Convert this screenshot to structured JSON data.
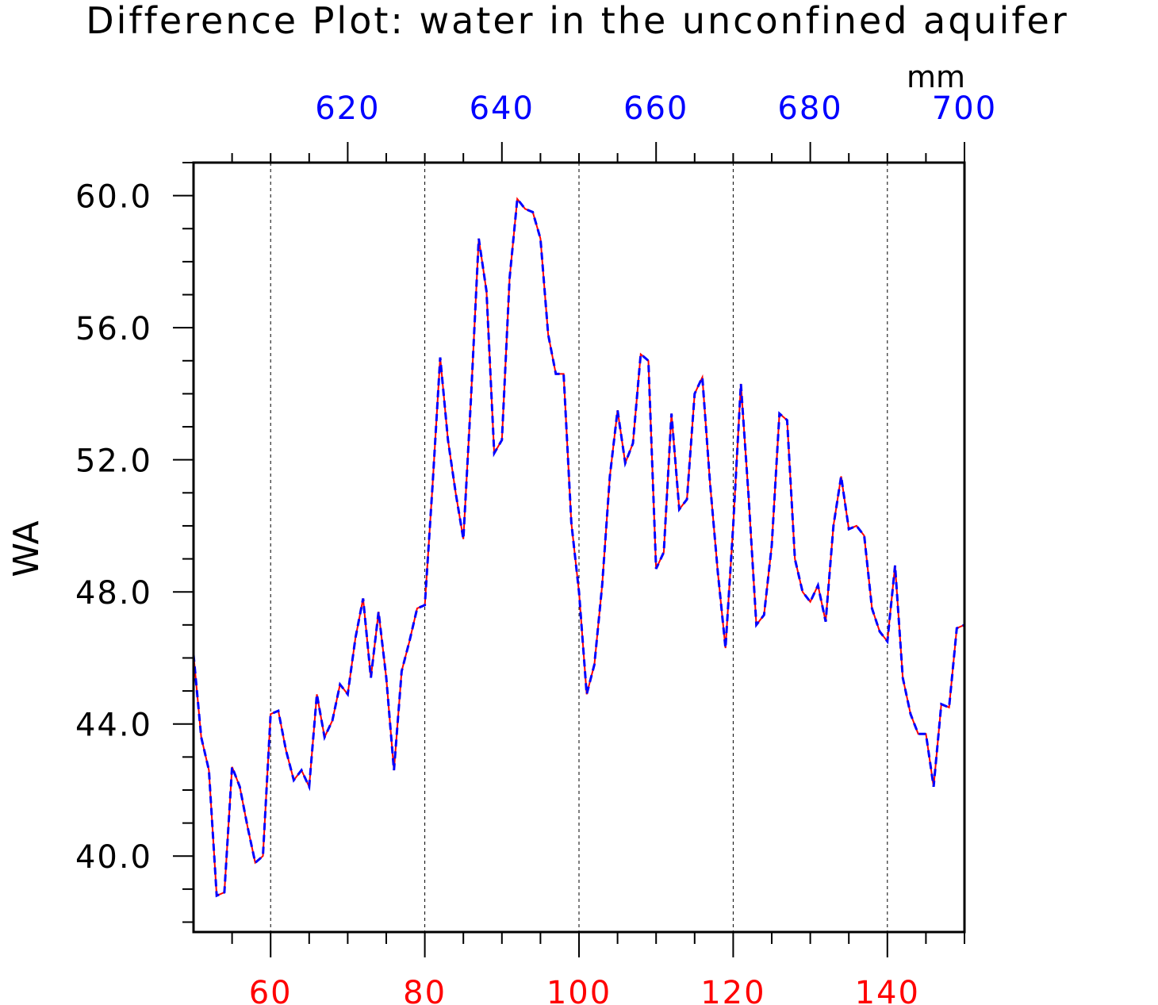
{
  "chart_data": {
    "type": "line",
    "title": "Difference Plot: water in the unconfined aquifer",
    "ylabel": "WA",
    "units_label": "mm",
    "x_bottom": {
      "range": [
        50,
        150
      ],
      "ticks": [
        60,
        80,
        100,
        120,
        140
      ],
      "tick_labels": [
        "60",
        "80",
        "100",
        "120",
        "140"
      ],
      "color": "#ff0000"
    },
    "x_top": {
      "range": [
        600,
        700
      ],
      "ticks": [
        620,
        640,
        660,
        680,
        700
      ],
      "tick_labels": [
        "620",
        "640",
        "660",
        "680",
        "700"
      ],
      "color": "#0000ff"
    },
    "y_axis": {
      "range": [
        37.7,
        61.0
      ],
      "ticks": [
        40,
        44,
        48,
        52,
        56,
        60
      ],
      "tick_labels": [
        "40.0",
        "44.0",
        "48.0",
        "52.0",
        "56.0",
        "60.0"
      ]
    },
    "grid": "vertical dashed at bottom-axis major ticks",
    "series": [
      {
        "color": "#ff0000",
        "style": "solid",
        "x": [
          50,
          51,
          52,
          53,
          54,
          55,
          56,
          57,
          58,
          59,
          60,
          61,
          62,
          63,
          64,
          65,
          66,
          67,
          68,
          69,
          70,
          71,
          72,
          73,
          74,
          75,
          76,
          77,
          78,
          79,
          80,
          81,
          82,
          83,
          84,
          85,
          86,
          87,
          88,
          89,
          90,
          91,
          92,
          93,
          94,
          95,
          96,
          97,
          98,
          99,
          100,
          101,
          102,
          103,
          104,
          105,
          106,
          107,
          108,
          109,
          110,
          111,
          112,
          113,
          114,
          115,
          116,
          117,
          118,
          119,
          120,
          121,
          122,
          123,
          124,
          125,
          126,
          127,
          128,
          129,
          130,
          131,
          132,
          133,
          134,
          135,
          136,
          137,
          138,
          139,
          140,
          141,
          142,
          143,
          144,
          145,
          146,
          147,
          148,
          149,
          150
        ],
        "values": [
          46.1,
          43.6,
          42.6,
          38.8,
          38.9,
          42.7,
          42.1,
          40.9,
          39.8,
          40.0,
          44.3,
          44.4,
          43.2,
          42.3,
          42.6,
          42.1,
          44.9,
          43.6,
          44.1,
          45.2,
          44.9,
          46.6,
          47.8,
          45.4,
          47.4,
          45.4,
          42.6,
          45.6,
          46.5,
          47.5,
          47.6,
          51.2,
          55.1,
          52.6,
          51.0,
          49.6,
          53.9,
          58.7,
          57.1,
          52.2,
          52.6,
          57.5,
          59.9,
          59.6,
          59.5,
          58.7,
          55.8,
          54.6,
          54.6,
          50.1,
          48.0,
          44.9,
          45.8,
          48.2,
          51.5,
          53.5,
          51.9,
          52.5,
          55.2,
          55.0,
          48.7,
          49.2,
          53.4,
          50.5,
          50.8,
          54.0,
          54.5,
          51.3,
          48.6,
          46.3,
          50.0,
          54.3,
          50.9,
          47.0,
          47.3,
          49.4,
          53.4,
          53.2,
          49.0,
          48.0,
          47.7,
          48.2,
          47.1,
          50.0,
          51.5,
          49.9,
          50.0,
          49.7,
          47.5,
          46.8,
          46.5,
          48.8,
          45.4,
          44.3,
          43.7,
          43.7,
          42.1,
          44.6,
          44.5,
          46.9,
          47.0
        ]
      },
      {
        "color": "#0000ff",
        "style": "dashed",
        "x": [
          600,
          601,
          602,
          603,
          604,
          605,
          606,
          607,
          608,
          609,
          610,
          611,
          612,
          613,
          614,
          615,
          616,
          617,
          618,
          619,
          620,
          621,
          622,
          623,
          624,
          625,
          626,
          627,
          628,
          629,
          630,
          631,
          632,
          633,
          634,
          635,
          636,
          637,
          638,
          639,
          640,
          641,
          642,
          643,
          644,
          645,
          646,
          647,
          648,
          649,
          650,
          651,
          652,
          653,
          654,
          655,
          656,
          657,
          658,
          659,
          660,
          661,
          662,
          663,
          664,
          665,
          666,
          667,
          668,
          669,
          670,
          671,
          672,
          673,
          674,
          675,
          676,
          677,
          678,
          679,
          680,
          681,
          682,
          683,
          684,
          685,
          686,
          687,
          688,
          689,
          690,
          691,
          692,
          693,
          694,
          695,
          696,
          697,
          698,
          699,
          700
        ],
        "values": [
          46.1,
          43.6,
          42.6,
          38.8,
          38.9,
          42.7,
          42.1,
          40.9,
          39.8,
          40.0,
          44.3,
          44.4,
          43.2,
          42.3,
          42.6,
          42.1,
          44.9,
          43.6,
          44.1,
          45.2,
          44.9,
          46.6,
          47.8,
          45.4,
          47.4,
          45.4,
          42.6,
          45.6,
          46.5,
          47.5,
          47.6,
          51.2,
          55.1,
          52.6,
          51.0,
          49.6,
          53.9,
          58.7,
          57.1,
          52.2,
          52.6,
          57.5,
          59.9,
          59.6,
          59.5,
          58.7,
          55.8,
          54.6,
          54.6,
          50.1,
          48.0,
          44.9,
          45.8,
          48.2,
          51.5,
          53.5,
          51.9,
          52.5,
          55.2,
          55.0,
          48.7,
          49.2,
          53.4,
          50.5,
          50.8,
          54.0,
          54.5,
          51.3,
          48.6,
          46.3,
          50.0,
          54.3,
          50.9,
          47.0,
          47.3,
          49.4,
          53.4,
          53.2,
          49.0,
          48.0,
          47.7,
          48.2,
          47.1,
          50.0,
          51.5,
          49.9,
          50.0,
          49.7,
          47.5,
          46.8,
          46.5,
          48.8,
          45.4,
          44.3,
          43.7,
          43.7,
          42.1,
          44.6,
          44.5,
          46.9,
          47.0
        ]
      }
    ]
  }
}
